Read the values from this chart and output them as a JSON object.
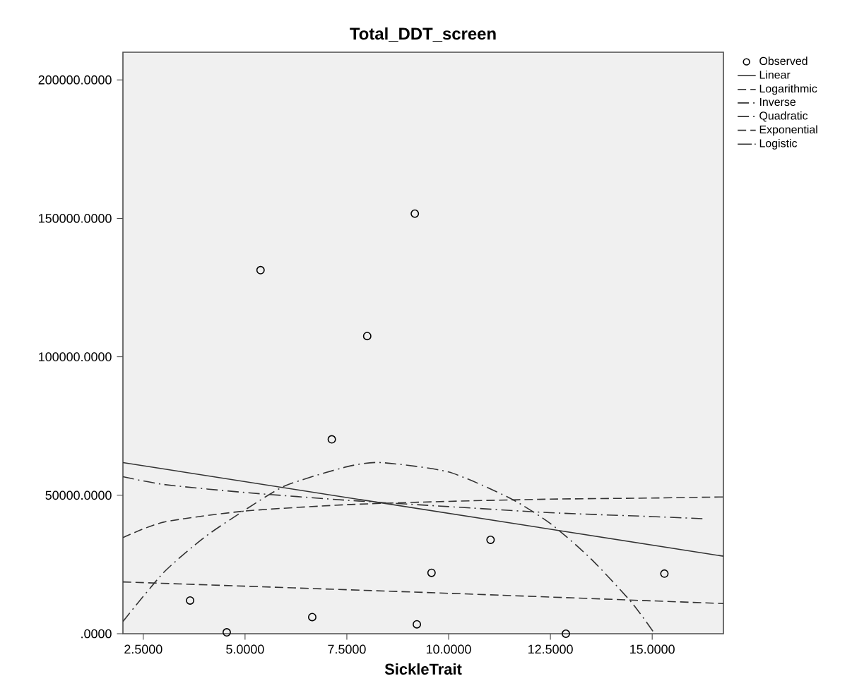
{
  "chart_data": {
    "type": "line",
    "title": "Total_DDT_screen",
    "xlabel": "SickleTrait",
    "xlim": [
      2.0,
      16.75
    ],
    "ylim": [
      0,
      210000
    ],
    "xticks": [
      {
        "value": 2.5,
        "label": "2.5000"
      },
      {
        "value": 5,
        "label": "5.0000"
      },
      {
        "value": 7.5,
        "label": "7.5000"
      },
      {
        "value": 10,
        "label": "10.0000"
      },
      {
        "value": 12.5,
        "label": "12.5000"
      },
      {
        "value": 15,
        "label": "15.0000"
      }
    ],
    "yticks": [
      {
        "value": 0,
        "label": ".0000"
      },
      {
        "value": 50000,
        "label": "50000.0000"
      },
      {
        "value": 100000,
        "label": "100000.0000"
      },
      {
        "value": 150000,
        "label": "150000.0000"
      },
      {
        "value": 200000,
        "label": "200000.0000"
      }
    ],
    "legend": "top right",
    "series": [
      {
        "name": "Observed",
        "type": "scatter",
        "marker": "circle",
        "color": "#000000",
        "x": [
          3.65,
          4.55,
          5.38,
          6.65,
          7.13,
          8.0,
          9.17,
          9.22,
          9.58,
          11.03,
          12.88,
          15.3
        ],
        "values": [
          12000,
          500,
          131300,
          6000,
          70200,
          107500,
          151700,
          3400,
          22000,
          33900,
          0,
          21700
        ]
      },
      {
        "name": "Linear",
        "line_style": "solid",
        "color": "#333333",
        "x": [
          2.0,
          16.75
        ],
        "values": [
          61800,
          28000
        ]
      },
      {
        "name": "Logarithmic",
        "line_style": "dashed",
        "color": "#333333",
        "x": [
          2.0,
          3,
          5,
          7.5,
          10,
          12.5,
          15,
          16.75
        ],
        "values": [
          34700,
          40300,
          44300,
          46600,
          47800,
          48600,
          49000,
          49400
        ]
      },
      {
        "name": "Inverse",
        "line_style": "dashdot",
        "color": "#333333",
        "x": [
          2.0,
          3,
          5,
          7.5,
          10,
          12.5,
          15,
          16.3
        ],
        "values": [
          56700,
          53900,
          51000,
          48200,
          45900,
          43700,
          42300,
          41500
        ]
      },
      {
        "name": "Quadratic",
        "line_style": "dashdot",
        "color": "#333333",
        "x": [
          2.0,
          3,
          4,
          5,
          6,
          7.5,
          8.34,
          10,
          11.5,
          12.5,
          13.5,
          14.5,
          15.06
        ],
        "values": [
          4400,
          22100,
          34800,
          44700,
          53500,
          60300,
          61800,
          58400,
          49000,
          39800,
          27000,
          11200,
          0
        ]
      },
      {
        "name": "Exponential",
        "line_style": "dashed",
        "color": "#333333",
        "x": [
          2.0,
          10,
          16.75
        ],
        "values": [
          18700,
          14600,
          10900
        ]
      },
      {
        "name": "Logistic",
        "line_style": "dashdotdot",
        "color": "#333333"
      }
    ]
  }
}
